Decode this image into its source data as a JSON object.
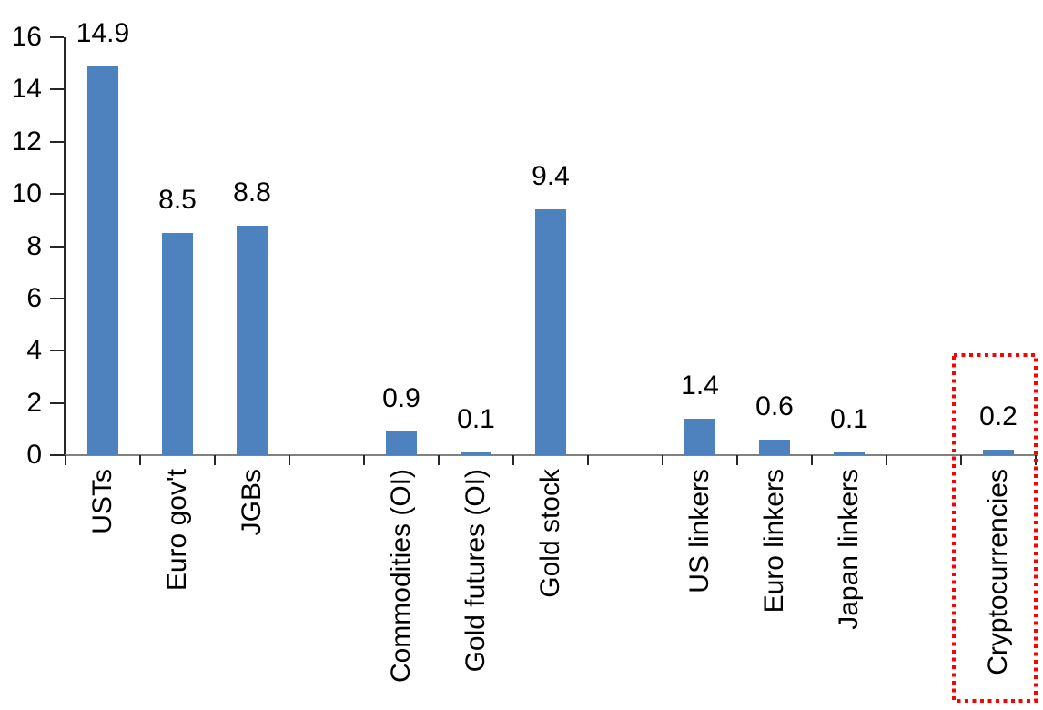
{
  "chart_data": {
    "type": "bar",
    "title": "",
    "xlabel": "",
    "ylabel": "",
    "categories": [
      "USTs",
      "Euro gov't",
      "JGBs",
      "Commodities (OI)",
      "Gold futures (OI)",
      "Gold stock",
      "US linkers",
      "Euro linkers",
      "Japan linkers",
      "Cryptocurrencies"
    ],
    "values": [
      14.9,
      8.5,
      8.8,
      0.9,
      0.1,
      9.4,
      1.4,
      0.6,
      0.1,
      0.2
    ],
    "data_labels": [
      "14.9",
      "8.5",
      "8.8",
      "0.9",
      "0.1",
      "9.4",
      "1.4",
      "0.6",
      "0.1",
      "0.2"
    ],
    "slot_indices": [
      0,
      1,
      2,
      4,
      5,
      6,
      8,
      9,
      10,
      12
    ],
    "num_slots": 13,
    "yticks": [
      0,
      2,
      4,
      6,
      8,
      10,
      12,
      14,
      16
    ],
    "ylim": [
      0,
      16
    ],
    "grid": "off",
    "legend": "none",
    "colors": {
      "bar": "#4E82BE",
      "value_axis_line": "#262626",
      "tick": "#262626",
      "category_axis_line": "#808080",
      "text": "#000000",
      "highlight_box": "#FF0000",
      "background": "#FFFFFF"
    },
    "highlight": {
      "category": "Cryptocurrencies",
      "style": "red-dotted-box"
    }
  }
}
